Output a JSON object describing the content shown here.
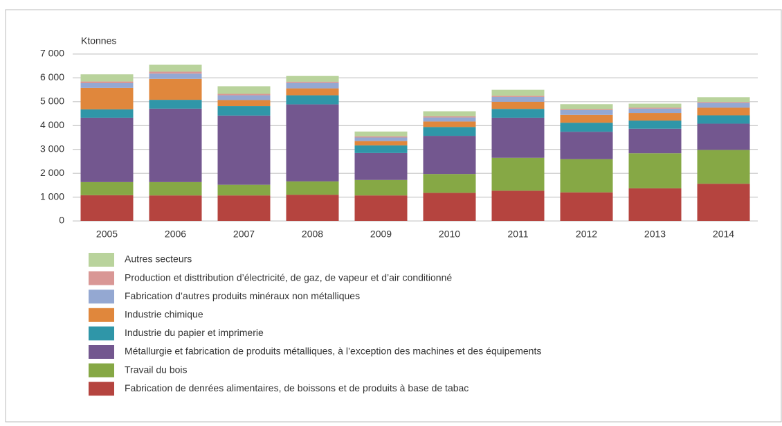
{
  "chart_data": {
    "type": "stacked-bar",
    "y_label": "Ktonnes",
    "categories": [
      "2005",
      "2006",
      "2007",
      "2008",
      "2009",
      "2010",
      "2011",
      "2012",
      "2013",
      "2014"
    ],
    "ylim": [
      0,
      7000
    ],
    "yticks": [
      0,
      {
        "value": 1000,
        "label": "1 000"
      },
      {
        "value": 2000,
        "label": "2 000"
      },
      {
        "value": 3000,
        "label": "3 000"
      },
      {
        "value": 4000,
        "label": "4 000"
      },
      {
        "value": 5000,
        "label": "5 000"
      },
      {
        "value": 6000,
        "label": "6 000"
      },
      {
        "value": 7000,
        "label": "7 000"
      }
    ],
    "grid": true,
    "series": [
      {
        "name": "Fabrication de denrées alimentaires, de boissons et de produits à base de tabac",
        "color": "#b5443f",
        "values": [
          1080,
          1070,
          1070,
          1100,
          1070,
          1180,
          1270,
          1200,
          1370,
          1560
        ]
      },
      {
        "name": "Travail du bois",
        "color": "#86a845",
        "values": [
          550,
          560,
          450,
          560,
          650,
          790,
          1380,
          1390,
          1470,
          1420
        ]
      },
      {
        "name": "Métallurgie et fabrication de produits métalliques, à l’exception des machines et des équipements",
        "color": "#73578f",
        "values": [
          2700,
          3080,
          2900,
          3230,
          1130,
          1600,
          1680,
          1150,
          1030,
          1100
        ]
      },
      {
        "name": "Industrie du papier et imprimerie",
        "color": "#2f96a8",
        "values": [
          350,
          370,
          400,
          380,
          320,
          370,
          370,
          380,
          340,
          350
        ]
      },
      {
        "name": "Industrie chimique",
        "color": "#e0873c",
        "values": [
          900,
          880,
          250,
          290,
          180,
          230,
          300,
          330,
          320,
          320
        ]
      },
      {
        "name": "Fabrication d’autres produits minéraux non métalliques",
        "color": "#94a8d2",
        "values": [
          200,
          220,
          200,
          230,
          150,
          170,
          200,
          200,
          180,
          200
        ]
      },
      {
        "name": "Production et disttribution d’électricité, de gaz, de vapeur et d’air conditionné",
        "color": "#d99795",
        "values": [
          70,
          80,
          60,
          50,
          50,
          50,
          50,
          40,
          40,
          40
        ]
      },
      {
        "name": "Autres secteurs",
        "color": "#b9d39c",
        "values": [
          300,
          290,
          320,
          240,
          200,
          210,
          250,
          210,
          170,
          200
        ]
      }
    ]
  }
}
